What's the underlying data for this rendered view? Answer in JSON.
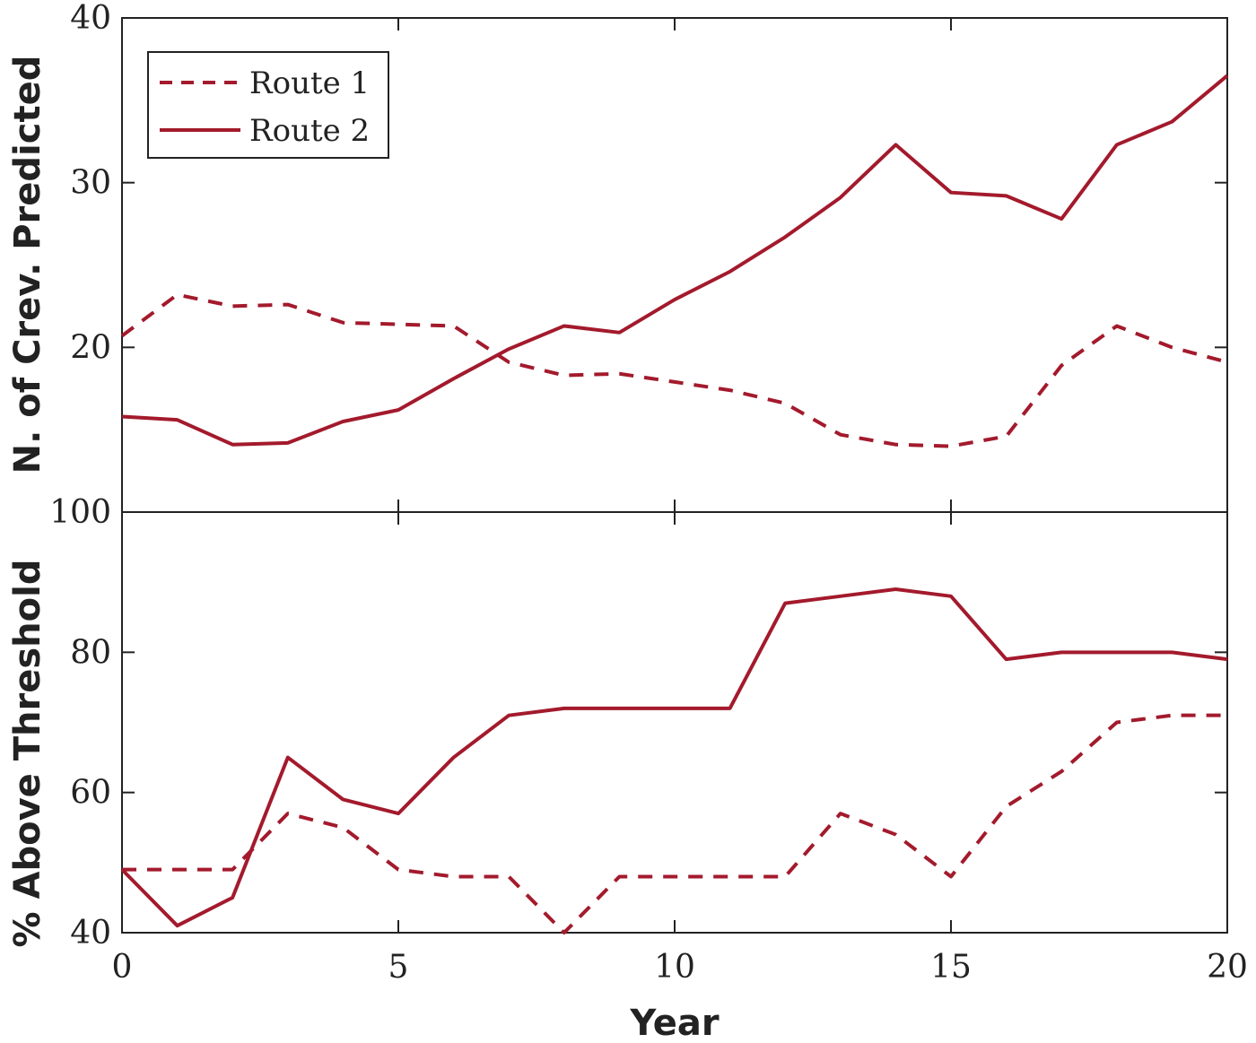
{
  "chart_data": [
    {
      "type": "line",
      "ylabel": "N. of Crev. Predicted",
      "xlabel": "",
      "xlim": [
        0,
        20
      ],
      "ylim": [
        10,
        40
      ],
      "xticks": [
        0,
        5,
        10,
        15,
        20
      ],
      "yticks": [
        10,
        20,
        30,
        40
      ],
      "ytick_labels": [
        "",
        "20",
        "30",
        "40"
      ],
      "legend_placement": "top-left",
      "color": "#A31A2C",
      "x": [
        0,
        1,
        2,
        3,
        4,
        5,
        6,
        7,
        8,
        9,
        10,
        11,
        12,
        13,
        14,
        15,
        16,
        17,
        18,
        19,
        20
      ],
      "series": [
        {
          "name": "Route 1",
          "style": "dashed",
          "values": [
            20.7,
            23.2,
            22.5,
            22.6,
            21.5,
            21.4,
            21.3,
            19.1,
            18.3,
            18.4,
            17.9,
            17.4,
            16.6,
            14.7,
            14.1,
            14.0,
            14.6,
            18.9,
            21.3,
            20.0,
            19.1
          ]
        },
        {
          "name": "Route 2",
          "style": "solid",
          "values": [
            15.8,
            15.6,
            14.1,
            14.2,
            15.5,
            16.2,
            18.1,
            19.9,
            21.3,
            20.9,
            22.9,
            24.6,
            26.7,
            29.1,
            32.3,
            29.4,
            29.2,
            27.8,
            32.3,
            33.7,
            36.5
          ]
        }
      ]
    },
    {
      "type": "line",
      "ylabel": "% Above Threshold",
      "xlabel": "Year",
      "xlim": [
        0,
        20
      ],
      "ylim": [
        40,
        100
      ],
      "xticks": [
        0,
        5,
        10,
        15,
        20
      ],
      "yticks": [
        40,
        60,
        80,
        100
      ],
      "ytick_labels": [
        "40",
        "60",
        "80",
        "100"
      ],
      "color": "#A31A2C",
      "x": [
        0,
        1,
        2,
        3,
        4,
        5,
        6,
        7,
        8,
        9,
        10,
        11,
        12,
        13,
        14,
        15,
        16,
        17,
        18,
        19,
        20
      ],
      "series": [
        {
          "name": "Route 1",
          "style": "dashed",
          "values": [
            49,
            49,
            49,
            57,
            55,
            49,
            48,
            48,
            40,
            48,
            48,
            48,
            48,
            57,
            54,
            48,
            58,
            63,
            70,
            71,
            71
          ]
        },
        {
          "name": "Route 2",
          "style": "solid",
          "values": [
            49,
            41,
            45,
            65,
            59,
            57,
            65,
            71,
            72,
            72,
            72,
            72,
            87,
            88,
            89,
            88,
            79,
            80,
            80,
            80,
            79
          ]
        }
      ]
    }
  ],
  "legend": {
    "items": [
      "Route 1",
      "Route 2"
    ]
  }
}
